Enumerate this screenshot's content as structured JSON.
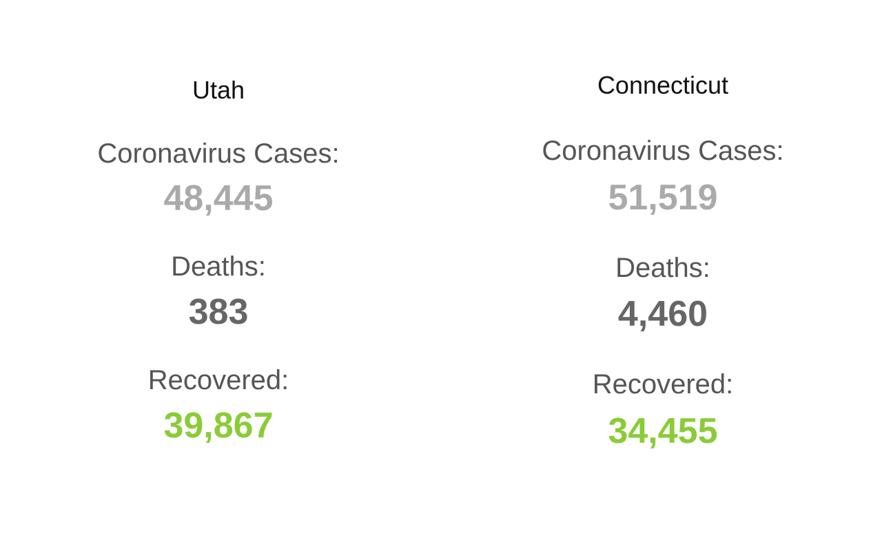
{
  "colors": {
    "cases": "#aaaaaa",
    "deaths": "#666666",
    "recovered": "#8acc37"
  },
  "states": [
    {
      "name": "Utah",
      "cases_label": "Coronavirus Cases:",
      "cases": "48,445",
      "deaths_label": "Deaths:",
      "deaths": "383",
      "recovered_label": "Recovered:",
      "recovered": "39,867"
    },
    {
      "name": "Connecticut",
      "cases_label": "Coronavirus Cases:",
      "cases": "51,519",
      "deaths_label": "Deaths:",
      "deaths": "4,460",
      "recovered_label": "Recovered:",
      "recovered": "34,455"
    }
  ]
}
